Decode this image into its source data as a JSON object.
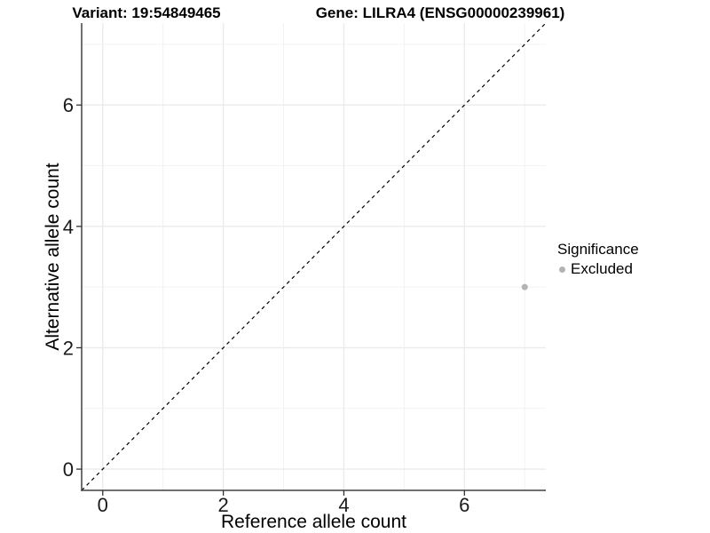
{
  "window": {
    "background": "#ffffff"
  },
  "chart_data": {
    "type": "scatter",
    "title_left": "Variant: 19:54849465",
    "title_right": "Gene: LILRA4 (ENSG00000239961)",
    "xlabel": "Reference allele count",
    "ylabel": "Alternative allele count",
    "xlim": [
      -0.35,
      7.35
    ],
    "ylim": [
      -0.35,
      7.35
    ],
    "x_major_ticks": [
      0,
      2,
      4,
      6
    ],
    "y_major_ticks": [
      0,
      2,
      4,
      6
    ],
    "x_minor_ticks": [
      1,
      3,
      5,
      7
    ],
    "y_minor_ticks": [
      1,
      3,
      5,
      7
    ],
    "grid": true,
    "gridline_major_color": "#ebebeb",
    "gridline_minor_color": "#f2f2f2",
    "axis_line_color": "#404040",
    "tick_color": "#333333",
    "identity_line": {
      "slope": 1,
      "intercept": 0,
      "style": "dashed",
      "color": "#000000",
      "dash": "4 4"
    },
    "series": [
      {
        "name": "Excluded",
        "color": "#b3b3b3",
        "points": [
          {
            "x": 7,
            "y": 3
          }
        ]
      }
    ],
    "legend": {
      "title": "Significance",
      "position": "right",
      "entries": [
        {
          "label": "Excluded",
          "color": "#b3b3b3"
        }
      ]
    }
  }
}
